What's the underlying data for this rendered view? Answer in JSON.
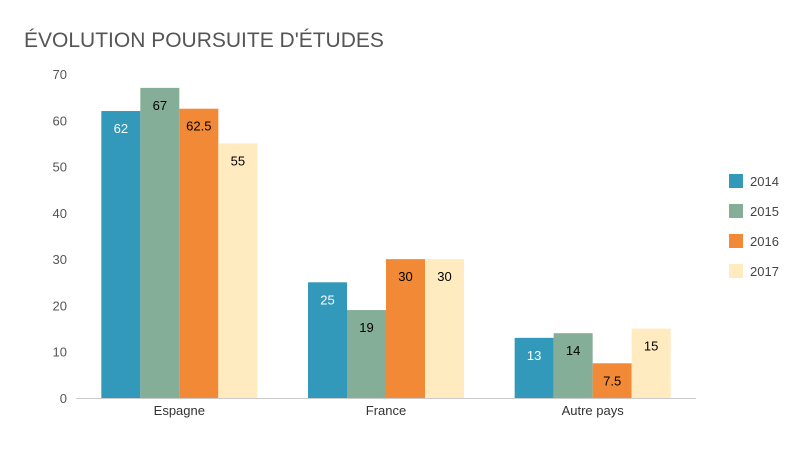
{
  "chart_data": {
    "type": "bar",
    "title": "ÉVOLUTION POURSUITE D'ÉTUDES",
    "xlabel": "",
    "ylabel": "",
    "ylim": [
      0,
      70
    ],
    "yticks": [
      0,
      10,
      20,
      30,
      40,
      50,
      60,
      70
    ],
    "grid": false,
    "legend_position": "right",
    "categories": [
      "Espagne",
      "France",
      "Autre pays"
    ],
    "series": [
      {
        "name": "2014",
        "color": "#3399bb",
        "label_color": "#ffffff",
        "values": [
          62,
          25,
          13
        ],
        "labels": [
          "62",
          "25",
          "13"
        ]
      },
      {
        "name": "2015",
        "color": "#85ae98",
        "label_color": "#000000",
        "values": [
          67,
          19,
          14
        ],
        "labels": [
          "67",
          "19",
          "14"
        ]
      },
      {
        "name": "2016",
        "color": "#f28936",
        "label_color": "#000000",
        "values": [
          62.5,
          30,
          7.5
        ],
        "labels": [
          "62.5",
          "30",
          "7.5"
        ]
      },
      {
        "name": "2017",
        "color": "#ffebbf",
        "label_color": "#000000",
        "values": [
          55,
          30,
          15
        ],
        "labels": [
          "55",
          "30",
          "15"
        ]
      }
    ]
  }
}
